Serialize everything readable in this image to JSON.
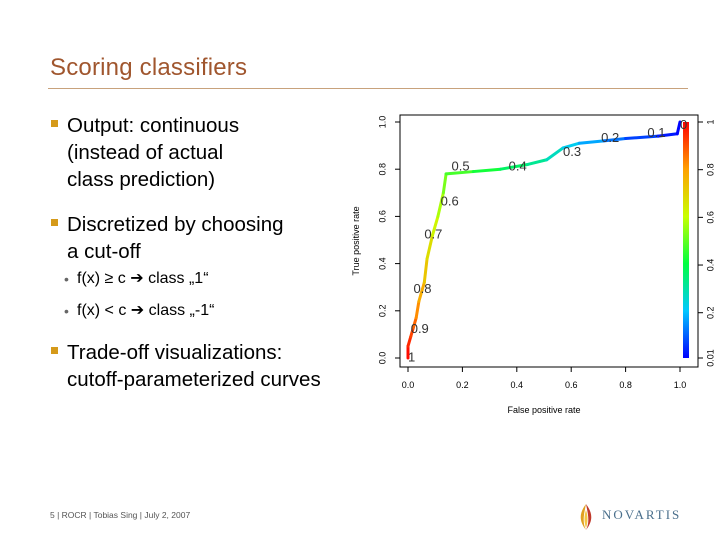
{
  "slide": {
    "title": "Scoring classifiers",
    "bullets": [
      {
        "lines": [
          "Output: continuous",
          "(instead of actual",
          "class prediction)"
        ]
      },
      {
        "lines": [
          "Discretized by choosing",
          "a cut-off"
        ],
        "sub": [
          "f(x) ≥ c ➔ class „1“",
          "f(x) < c ➔ class „-1“"
        ]
      },
      {
        "lines": [
          "Trade-off visualizations:",
          "cutoff-parameterized curves"
        ]
      }
    ],
    "footer": "5 | ROCR | Tobias Sing | July 2, 2007",
    "logo_text": "NOVARTIS"
  },
  "chart_data": {
    "type": "line",
    "xlabel": "False positive rate",
    "ylabel": "True positive rate",
    "xlim": [
      0,
      1
    ],
    "ylim": [
      0,
      1
    ],
    "x_ticks": [
      "0.0",
      "0.2",
      "0.4",
      "0.6",
      "0.8",
      "1.0"
    ],
    "y_ticks": [
      "0.0",
      "0.2",
      "0.4",
      "0.6",
      "0.8",
      "1.0"
    ],
    "colorbar_ticks": [
      "0.01",
      "0.2",
      "0.4",
      "0.6",
      "0.8",
      "1"
    ],
    "colorbar_range": [
      0.01,
      1
    ],
    "curve": [
      {
        "fpr": 0.0,
        "tpr": 0.0,
        "cutoff": 1.0
      },
      {
        "fpr": 0.0,
        "tpr": 0.05,
        "cutoff": 0.97
      },
      {
        "fpr": 0.01,
        "tpr": 0.09,
        "cutoff": 0.93
      },
      {
        "fpr": 0.02,
        "tpr": 0.13,
        "cutoff": 0.9
      },
      {
        "fpr": 0.03,
        "tpr": 0.17,
        "cutoff": 0.85
      },
      {
        "fpr": 0.04,
        "tpr": 0.24,
        "cutoff": 0.8
      },
      {
        "fpr": 0.06,
        "tpr": 0.32,
        "cutoff": 0.75
      },
      {
        "fpr": 0.07,
        "tpr": 0.42,
        "cutoff": 0.7
      },
      {
        "fpr": 0.09,
        "tpr": 0.52,
        "cutoff": 0.65
      },
      {
        "fpr": 0.11,
        "tpr": 0.6,
        "cutoff": 0.6
      },
      {
        "fpr": 0.13,
        "tpr": 0.7,
        "cutoff": 0.55
      },
      {
        "fpr": 0.14,
        "tpr": 0.78,
        "cutoff": 0.5
      },
      {
        "fpr": 0.24,
        "tpr": 0.79,
        "cutoff": 0.45
      },
      {
        "fpr": 0.34,
        "tpr": 0.8,
        "cutoff": 0.4
      },
      {
        "fpr": 0.44,
        "tpr": 0.82,
        "cutoff": 0.34
      },
      {
        "fpr": 0.51,
        "tpr": 0.84,
        "cutoff": 0.3
      },
      {
        "fpr": 0.57,
        "tpr": 0.89,
        "cutoff": 0.25
      },
      {
        "fpr": 0.63,
        "tpr": 0.91,
        "cutoff": 0.2
      },
      {
        "fpr": 0.72,
        "tpr": 0.92,
        "cutoff": 0.15
      },
      {
        "fpr": 0.8,
        "tpr": 0.93,
        "cutoff": 0.1
      },
      {
        "fpr": 0.92,
        "tpr": 0.94,
        "cutoff": 0.05
      },
      {
        "fpr": 0.99,
        "tpr": 0.95,
        "cutoff": 0.02
      },
      {
        "fpr": 1.0,
        "tpr": 1.0,
        "cutoff": 0.01
      }
    ],
    "cutoff_labels": [
      {
        "text": "1",
        "fpr": 0.0,
        "tpr": 0.0
      },
      {
        "text": "0.9",
        "fpr": 0.01,
        "tpr": 0.12
      },
      {
        "text": "0.8",
        "fpr": 0.02,
        "tpr": 0.29
      },
      {
        "text": "0.7",
        "fpr": 0.06,
        "tpr": 0.52
      },
      {
        "text": "0.6",
        "fpr": 0.12,
        "tpr": 0.66
      },
      {
        "text": "0.5",
        "fpr": 0.16,
        "tpr": 0.81
      },
      {
        "text": "0.4",
        "fpr": 0.37,
        "tpr": 0.81
      },
      {
        "text": "0.3",
        "fpr": 0.57,
        "tpr": 0.87
      },
      {
        "text": "0.2",
        "fpr": 0.71,
        "tpr": 0.93
      },
      {
        "text": "0.1",
        "fpr": 0.88,
        "tpr": 0.95
      },
      {
        "text": "0",
        "fpr": 1.0,
        "tpr": 0.985
      }
    ]
  }
}
